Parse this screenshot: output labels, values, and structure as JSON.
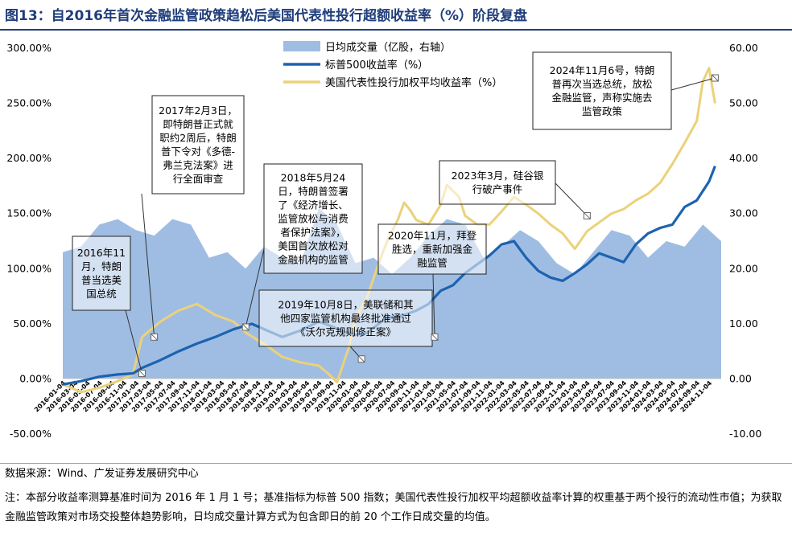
{
  "title": "图13：自2016年首次金融监管政策趋松后美国代表性投行超额收益率（%）阶段复盘",
  "chart_data": {
    "type": "line",
    "title": "图13：自2016年首次金融监管政策趋松后美国代表性投行超额收益率（%）阶段复盘",
    "left_axis": {
      "ticks": [
        "300.00%",
        "250.00%",
        "200.00%",
        "150.00%",
        "100.00%",
        "50.00%",
        "0.00%",
        "-50.00%"
      ],
      "tick_values": [
        300,
        250,
        200,
        150,
        100,
        50,
        0,
        -50
      ],
      "ylim": [
        -50,
        300
      ]
    },
    "right_axis": {
      "ticks": [
        "60.00",
        "50.00",
        "40.00",
        "30.00",
        "20.00",
        "10.00",
        "0.00",
        "-10.00"
      ],
      "tick_values": [
        60,
        50,
        40,
        30,
        20,
        10,
        0,
        -10
      ],
      "ylim": [
        -10,
        60
      ]
    },
    "x_labels": [
      "2016-01-04",
      "2016-03-04",
      "2016-05-04",
      "2016-07-04",
      "2016-09-04",
      "2016-11-04",
      "2017-01-04",
      "2017-03-04",
      "2017-05-04",
      "2017-07-04",
      "2017-09-04",
      "2017-11-04",
      "2018-01-04",
      "2018-03-04",
      "2018-05-04",
      "2018-07-04",
      "2018-09-04",
      "2018-11-04",
      "2019-01-04",
      "2019-03-04",
      "2019-05-04",
      "2019-07-04",
      "2019-09-04",
      "2019-11-04",
      "2020-01-04",
      "2020-03-04",
      "2020-05-04",
      "2020-07-04",
      "2020-09-04",
      "2020-11-04",
      "2021-01-04",
      "2021-03-04",
      "2021-05-04",
      "2021-07-04",
      "2021-09-04",
      "2021-11-04",
      "2022-01-04",
      "2022-03-04",
      "2022-05-04",
      "2022-07-04",
      "2022-09-04",
      "2022-11-04",
      "2023-01-04",
      "2023-03-04",
      "2023-05-04",
      "2023-07-04",
      "2023-09-04",
      "2023-11-04",
      "2024-01-04",
      "2024-03-04",
      "2024-05-04",
      "2024-07-04",
      "2024-09-04",
      "2024-11-04"
    ],
    "legend": [
      "日均成交量（亿股，右轴）",
      "标普500收益率（%）",
      "美国代表性投行加权平均收益率（%）"
    ],
    "series": [
      {
        "name": "日均成交量（亿股，右轴）",
        "type": "area",
        "axis": "right",
        "color": "#9fbde3",
        "x": [
          0,
          3,
          6,
          9,
          12,
          15,
          18,
          21,
          24,
          27,
          30,
          33,
          36,
          39,
          42,
          45,
          48,
          51,
          54,
          57,
          60,
          63,
          66,
          69,
          72,
          75,
          78,
          81,
          84,
          87,
          90,
          93,
          96,
          99,
          102,
          105,
          108
        ],
        "values": [
          23,
          24,
          28,
          29,
          27,
          26,
          29,
          28,
          22,
          23,
          20,
          24,
          22,
          21,
          31,
          28,
          21,
          22,
          19,
          22,
          26,
          29,
          28,
          22,
          24,
          27,
          25,
          21,
          19,
          23,
          27,
          26,
          22,
          25,
          24,
          28,
          25
        ]
      },
      {
        "name": "标普500收益率（%）",
        "type": "line",
        "axis": "left",
        "color": "#1c63b0",
        "x": [
          0,
          3,
          6,
          9,
          11.5,
          13,
          16,
          19,
          22,
          25,
          28,
          31,
          33.5,
          36,
          39,
          42,
          44,
          46,
          48,
          50,
          53,
          56,
          58,
          60,
          62,
          64,
          66,
          68,
          70,
          72,
          74,
          76,
          78,
          80,
          82,
          84,
          86,
          88,
          90,
          92,
          94,
          96,
          98,
          100,
          102,
          104,
          106,
          107
        ],
        "values": [
          -5,
          -2,
          2,
          4,
          5,
          10,
          17,
          25,
          32,
          38,
          45,
          50,
          44,
          38,
          44,
          52,
          48,
          43,
          40,
          42,
          55,
          58,
          62,
          68,
          80,
          85,
          96,
          104,
          112,
          122,
          125,
          110,
          98,
          92,
          89,
          96,
          104,
          114,
          110,
          106,
          122,
          132,
          137,
          140,
          156,
          162,
          179,
          193
        ]
      },
      {
        "name": "美国代表性投行加权平均收益率（%）",
        "type": "line",
        "axis": "left",
        "color": "#ead27a",
        "x": [
          0,
          3,
          6,
          9,
          11.5,
          13,
          14.5,
          16,
          19,
          22,
          25,
          28,
          30,
          33.5,
          36,
          39,
          42,
          43.5,
          45,
          47,
          48,
          50,
          51.5,
          53,
          55,
          56,
          57,
          58,
          60,
          62,
          63,
          65,
          66,
          68,
          70,
          72,
          74,
          76,
          78,
          80,
          82,
          84,
          86,
          88,
          90,
          92,
          94,
          96,
          98,
          100,
          102,
          104,
          105,
          106,
          107
        ],
        "values": [
          -5,
          -12,
          -8,
          -2,
          4,
          38,
          45,
          52,
          62,
          68,
          58,
          52,
          42,
          30,
          20,
          15,
          12,
          5,
          -3,
          30,
          55,
          75,
          100,
          122,
          145,
          160,
          153,
          144,
          140,
          158,
          176,
          165,
          148,
          140,
          140,
          152,
          165,
          158,
          150,
          140,
          132,
          118,
          134,
          142,
          150,
          154,
          162,
          168,
          178,
          195,
          214,
          234,
          270,
          282,
          250
        ]
      }
    ],
    "annotations": [
      {
        "label": "2016年11月，特朗普当选美国总统",
        "lines": [
          "2016年11",
          "月，特朗",
          "普当选美",
          "国总统"
        ],
        "x_label": "2016-11-08",
        "value": 5
      },
      {
        "label": "2017年2月3日，即特朗普正式就职约2周后，特朗普下令对《多德-弗兰克法案》进行全面审查",
        "lines": [
          "2017年2月3日，",
          "即特朗普正式就",
          "职约2周后，特朗",
          "普下令对《多德-",
          "弗兰克法案》进",
          "行全面审查"
        ],
        "x_label": "2017-02-03",
        "value": 38
      },
      {
        "label": "2018年5月24日，特朗普签署了《经济增长、监管放松与消费者保护法案》，美国首次放松对金融机构的监管",
        "lines": [
          "2018年5月24",
          "日，特朗普签署",
          "了《经济增长、",
          "监管放松与消费",
          "者保护法案》，",
          "美国首次放松对",
          "金融机构的监管"
        ],
        "x_label": "2018-05-24",
        "value": 47
      },
      {
        "label": "2019年10月8日，美联储和其他四家监管机构最终批准通过《沃尔克规则修正案》",
        "lines": [
          "2019年10月8日，美联储和其",
          "他四家监管机构最终批准通过",
          "《沃尔克规则修正案》"
        ],
        "x_label": "2019-10-08",
        "value": 18
      },
      {
        "label": "2020年11月，拜登胜选，重新加强金融监管",
        "lines": [
          "2020年11月，拜登",
          "胜选，重新加强金",
          "融监管"
        ],
        "x_label": "2020-11-03",
        "value": 38
      },
      {
        "label": "2023年3月，硅谷银行破产事件",
        "lines": [
          "2023年3月，硅谷银",
          "行破产事件"
        ],
        "x_label": "2023-03-10",
        "value": 148
      },
      {
        "label": "2024年11月6号，特朗普再次当选总统，放松金融监管，声称实施去监管政策",
        "lines": [
          "2024年11月6号，特朗",
          "普再次当选总统，放松",
          "金融监管，声称实施去",
          "监管政策"
        ],
        "x_label": "2024-11-06",
        "value": 273
      }
    ]
  },
  "footer": {
    "source": "数据来源：Wind、广发证券发展研究中心",
    "note": "注：本部分收益率测算基准时间为 2016 年 1 月 1 号；基准指标为标普 500 指数；美国代表性投行加权平均超额收益率计算的权重基于两个投行的流动性市值；为获取金融监管政策对市场交投整体趋势影响，日均成交量计算方式为包含即日的前 20 个工作日成交量的均值。"
  }
}
